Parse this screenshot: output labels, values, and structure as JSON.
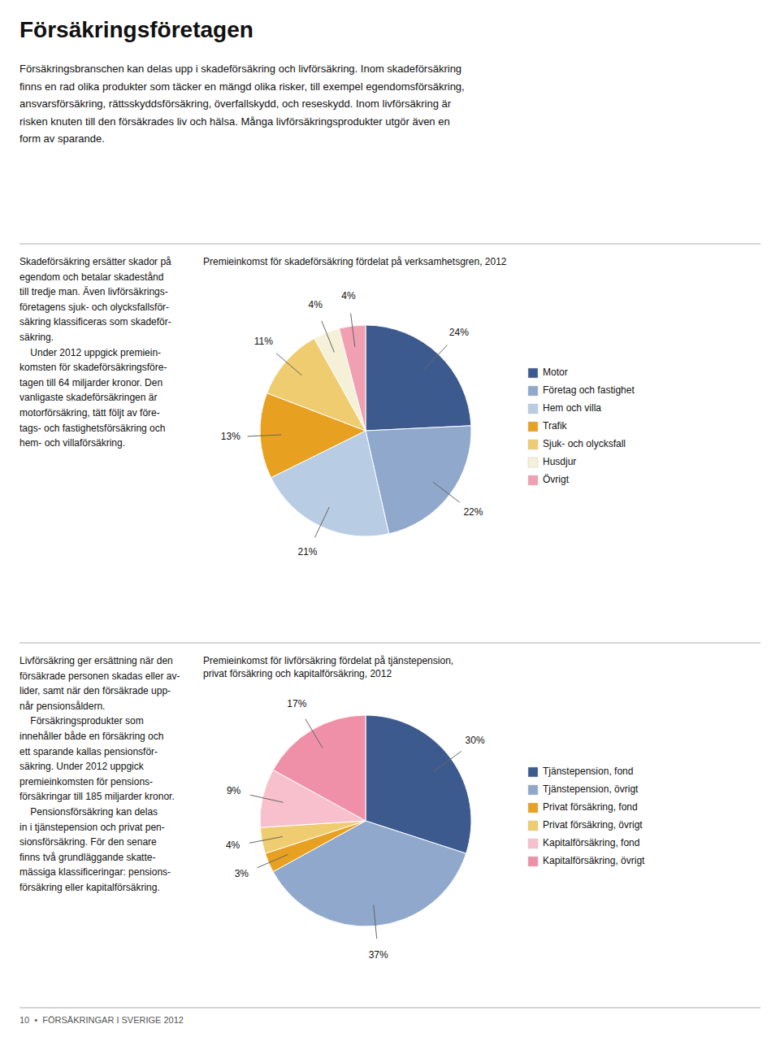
{
  "title": "Försäkringsföretagen",
  "subtitle": "Försäkringsbranschen kan delas upp i skadeförsäkring och livförsäkring. Inom skadeförsäkring\nfinns en rad olika produkter som täcker en mängd olika risker, till exempel egendomsförsäkring,\nansvarsförsäkring, rättsskyddsförsäkring, överfallskydd, och reseskydd. Inom livförsäkring är\nrisken knuten till den försäkrades liv och hälsa. Många livförsäkringsprodukter utgör även en\nform av sparande.",
  "annotations": [
    "10  •  FÖRSÄKRINGAR I SVERIGE 2012"
  ],
  "chart_data": [
    {
      "type": "pie",
      "title": "Premieinkomst för skadeförsäkring fördelat på verksamhetsgren, 2012",
      "categories": [
        "Motor",
        "Företag och fastighet",
        "Hem och villa",
        "Trafik",
        "Sjuk- och olycksfall",
        "Husdjur",
        "Övrigt"
      ],
      "values": [
        24,
        22,
        21,
        13,
        11,
        4,
        4
      ],
      "value_labels": [
        "24%",
        "22%",
        "21%",
        "13%",
        "11%",
        "4%",
        "4%"
      ],
      "colors": [
        "#3d5a8e",
        "#8fa8cc",
        "#b8cce4",
        "#e8a020",
        "#f0cc70",
        "#f5f0d8",
        "#f0a0b0"
      ],
      "data_labels": true,
      "legend": "right",
      "annotations": [
        "Skadeförsäkring ersätter skador på\negendom och betalar skadestånd\ntill tredje man. Även livförsäkrings-\nföretagens sjuk- och olycksfallsför-\nsäkring klassificeras som skadeför-\nsäkring.\n    Under 2012 uppgick premiein-\nkomsten för skadeförsäkringsföre-\ntagen till 64 miljarder kronor. Den\nvanligaste skadeförsäkringen är\nmotorförsäkring, tätt följt av före-\ntags- och fastighetsförsäkring och\nhem- och villaförsäkring."
      ]
    },
    {
      "type": "pie",
      "title": "Premieinkomst för livförsäkring fördelat på tjänstepension,\nprivat försäkring och kapitalförsäkring, 2012",
      "categories": [
        "Tjänstepension, fond",
        "Tjänstepension, övrigt",
        "Privat försäkring, fond",
        "Privat försäkring, övrigt",
        "Kapitalförsäkring, fond",
        "Kapitalförsäkring, övrigt"
      ],
      "values": [
        30,
        37,
        3,
        4,
        9,
        17
      ],
      "value_labels": [
        "30%",
        "37%",
        "3%",
        "4%",
        "9%",
        "17%"
      ],
      "colors": [
        "#3d5a8e",
        "#8fa8cc",
        "#e8a020",
        "#f0cc70",
        "#f8c0cc",
        "#f090a8"
      ],
      "data_labels": true,
      "legend": "right",
      "annotations": [
        "Livförsäkring ger ersättning när den\nförsäkrade personen skadas eller av-\nlider, samt när den försäkrade upp-\nnår pensionsåldern.\n    Försäkringsprodukter som\ninnehåller både en försäkring och\nett sparande kallas pensionsför-\nsäkring. Under 2012 uppgick\npremieinkomsten för pensions-\nförsäkringar till 185 miljarder kronor.\n    Pensionsförsäkring kan delas\nin i tjänstepension och privat pen-\nsionsförsäkring. För den senare\nfinns två grundläggande skatte-\nmässiga klassificeringar: pensions-\nförsäkring eller kapitalförsäkring."
      ]
    }
  ]
}
